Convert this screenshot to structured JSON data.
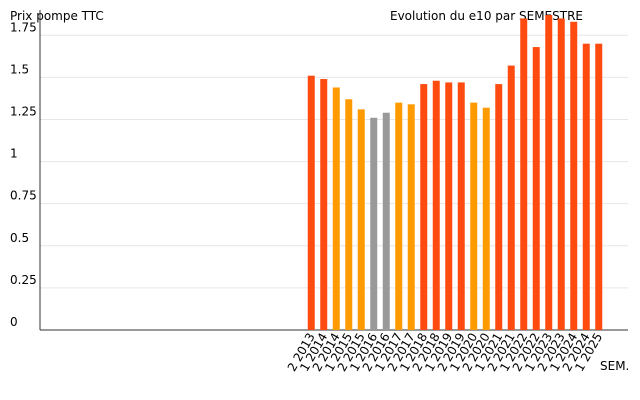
{
  "chart_data": {
    "type": "bar",
    "title": "Evolution du e10 par SEMESTRE",
    "y_label": "Prix pompe TTC",
    "x_label": "SEM.",
    "categories": [
      "2 2013",
      "1 2014",
      "2 2014",
      "1 2015",
      "2 2015",
      "1 2016",
      "2 2016",
      "1 2017",
      "2 2017",
      "1 2018",
      "2 2018",
      "1 2019",
      "2 2019",
      "1 2020",
      "2 2020",
      "1 2021",
      "2 2021",
      "1 2022",
      "2 2022",
      "1 2023",
      "2 2023",
      "1 2024",
      "2 2024",
      "1 2025"
    ],
    "values": [
      1.51,
      1.49,
      1.44,
      1.37,
      1.31,
      1.26,
      1.29,
      1.35,
      1.34,
      1.46,
      1.48,
      1.47,
      1.47,
      1.35,
      1.32,
      1.46,
      1.57,
      1.85,
      1.68,
      1.87,
      1.85,
      1.83,
      1.7,
      1.7
    ],
    "colors": [
      "#ff4a10",
      "#ff4a10",
      "#ff9a00",
      "#ff9a00",
      "#ff9a00",
      "#999999",
      "#999999",
      "#ff9a00",
      "#ff9a00",
      "#ff4a10",
      "#ff4a10",
      "#ff4a10",
      "#ff4a10",
      "#ff9a00",
      "#ff9a00",
      "#ff4a10",
      "#ff4a10",
      "#ff4a10",
      "#ff4a10",
      "#ff4a10",
      "#ff4a10",
      "#ff4a10",
      "#ff4a10",
      "#ff4a10"
    ],
    "ylim": [
      0,
      1.9
    ],
    "yticks": [
      0,
      0.25,
      0.5,
      0.75,
      1,
      1.25,
      1.5,
      1.75
    ],
    "grid": true
  }
}
